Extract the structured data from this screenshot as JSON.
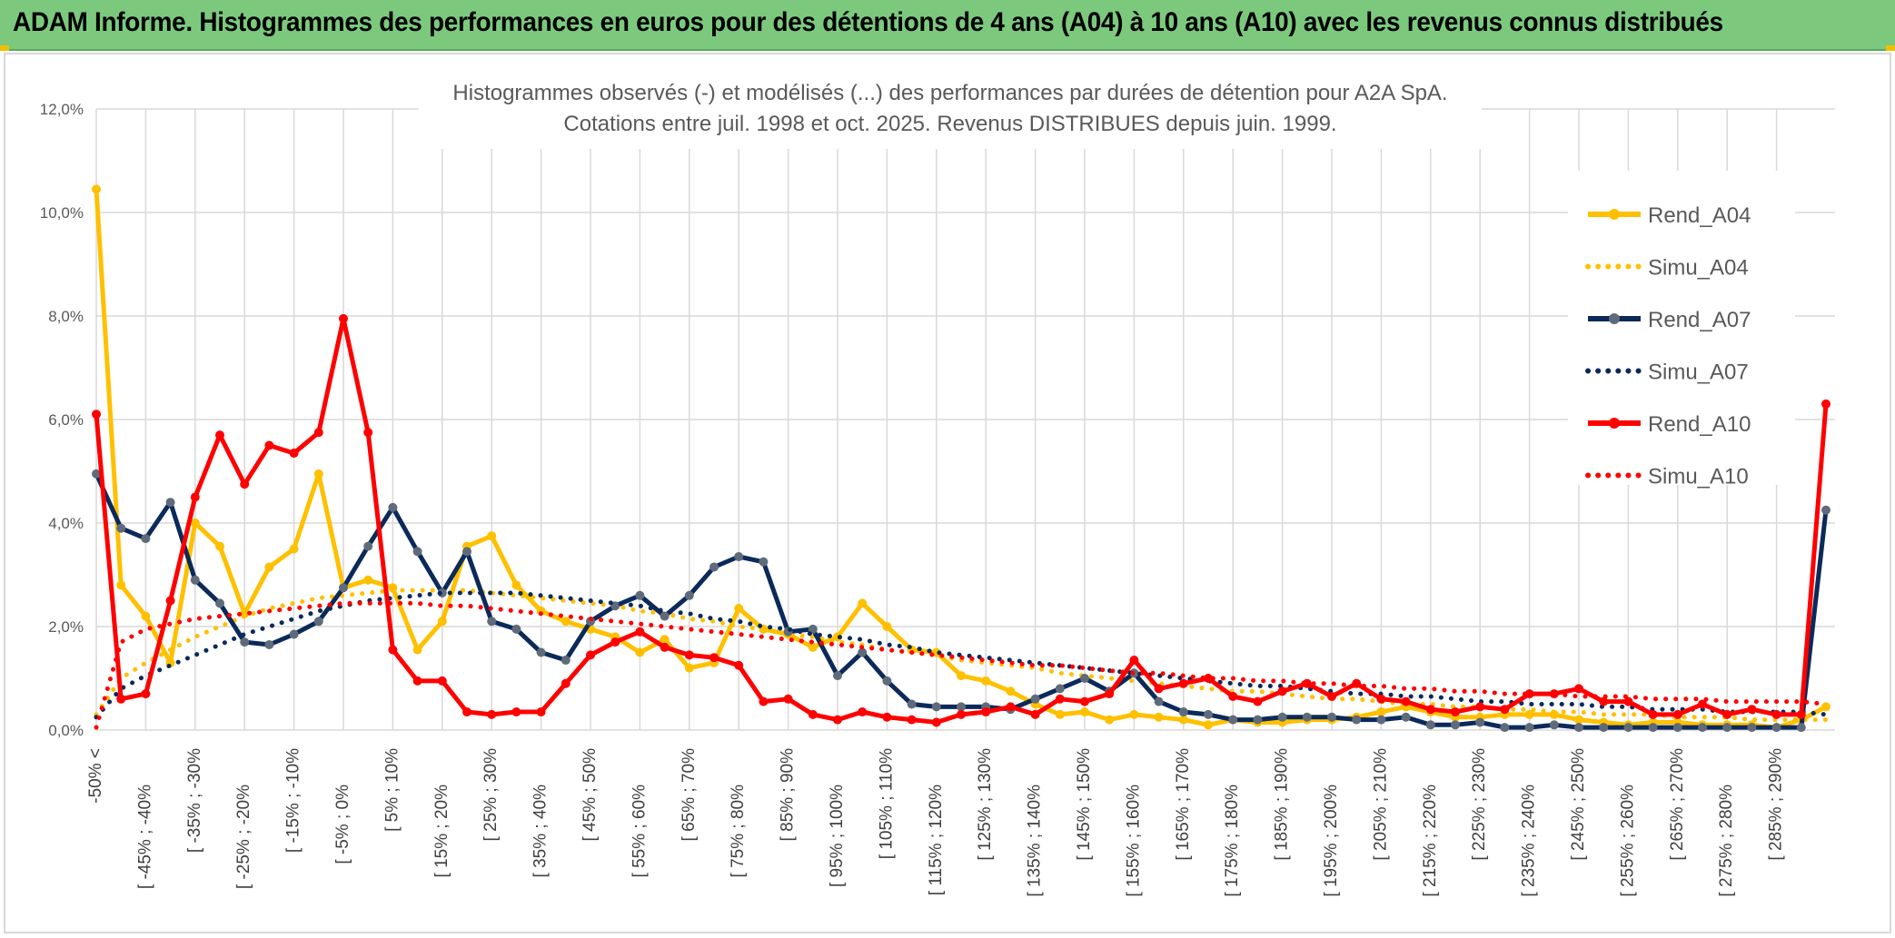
{
  "header": {
    "title": "ADAM Informe. Histogrammes des performances en euros pour des détentions de 4 ans (A04) à 10 ans (A10) avec les revenus connus distribués"
  },
  "colors": {
    "banner": "#7cc97e",
    "A04": "#ffc000",
    "A07": "#0b2a5a",
    "A10": "#ff0000",
    "grid": "#d9d9d9"
  },
  "chart_data": {
    "type": "line",
    "title": "Histogrammes observés (-) et modélisés (...) des performances par durées de détention pour A2A SpA.",
    "subtitle": "Cotations entre juil. 1998 et oct. 2025. Revenus DISTRIBUES depuis juin. 1999.",
    "xlabel": "",
    "ylabel": "",
    "ylim": [
      0,
      12
    ],
    "yticks": [
      "0,0%",
      "2,0%",
      "4,0%",
      "6,0%",
      "8,0%",
      "10,0%",
      "12,0%"
    ],
    "grid": true,
    "legend_position": "right",
    "x_tick_labels": [
      "-50% <",
      "[ -45% ; -40%",
      "[ -35% ; -30%",
      "[ -25% ; -20%",
      "[ -15% ; -10%",
      "[ -5% ; 0%",
      "[ 5% ; 10%",
      "[ 15% ; 20%",
      "[ 25% ; 30%",
      "[ 35% ; 40%",
      "[ 45% ; 50%",
      "[ 55% ; 60%",
      "[ 65% ; 70%",
      "[ 75% ; 80%",
      "[ 85% ; 90%",
      "[ 95% ; 100%",
      "[ 105% ; 110%",
      "[ 115% ; 120%",
      "[ 125% ; 130%",
      "[ 135% ; 140%",
      "[ 145% ; 150%",
      "[ 155% ; 160%",
      "[ 165% ; 170%",
      "[ 175% ; 180%",
      "[ 185% ; 190%",
      "[ 195% ; 200%",
      "[ 205% ; 210%",
      "[ 215% ; 220%",
      "[ 225% ; 230%",
      "[ 235% ; 240%",
      "[ 245% ; 250%",
      "[ 255% ; 260%",
      "[ 265% ; 270%",
      "[ 275% ; 280%",
      "[ 285% ; 290%"
    ],
    "n_categories": 71,
    "series": [
      {
        "name": "Rend_A04",
        "style": "solid",
        "color": "#ffc000",
        "values": [
          10.45,
          2.8,
          2.2,
          1.3,
          4.0,
          3.55,
          2.25,
          3.15,
          3.5,
          4.95,
          2.75,
          2.9,
          2.75,
          1.55,
          2.1,
          3.55,
          3.75,
          2.8,
          2.3,
          2.1,
          1.95,
          1.8,
          1.5,
          1.75,
          1.2,
          1.3,
          2.35,
          1.95,
          1.85,
          1.6,
          1.8,
          2.45,
          2.0,
          1.55,
          1.5,
          1.05,
          0.95,
          0.75,
          0.5,
          0.3,
          0.35,
          0.2,
          0.3,
          0.25,
          0.2,
          0.1,
          0.2,
          0.15,
          0.15,
          0.2,
          0.2,
          0.25,
          0.35,
          0.45,
          0.35,
          0.25,
          0.25,
          0.3,
          0.3,
          0.3,
          0.2,
          0.15,
          0.1,
          0.15,
          0.15,
          0.1,
          0.1,
          0.1,
          0.05,
          0.2,
          0.45
        ]
      },
      {
        "name": "Simu_A04",
        "style": "dotted",
        "color": "#ffc000",
        "values": [
          0.3,
          1.0,
          1.3,
          1.55,
          1.8,
          2.0,
          2.2,
          2.35,
          2.45,
          2.55,
          2.6,
          2.65,
          2.7,
          2.7,
          2.7,
          2.7,
          2.65,
          2.6,
          2.55,
          2.5,
          2.45,
          2.4,
          2.3,
          2.25,
          2.15,
          2.1,
          2.0,
          1.95,
          1.85,
          1.8,
          1.7,
          1.65,
          1.55,
          1.5,
          1.45,
          1.35,
          1.3,
          1.25,
          1.2,
          1.1,
          1.05,
          1.0,
          0.95,
          0.9,
          0.85,
          0.8,
          0.75,
          0.75,
          0.7,
          0.65,
          0.6,
          0.6,
          0.55,
          0.5,
          0.5,
          0.45,
          0.45,
          0.4,
          0.4,
          0.35,
          0.35,
          0.3,
          0.3,
          0.3,
          0.25,
          0.25,
          0.25,
          0.2,
          0.2,
          0.2,
          0.2
        ]
      },
      {
        "name": "Rend_A07",
        "style": "solid",
        "color": "#0b2a5a",
        "values": [
          4.95,
          3.9,
          3.7,
          4.4,
          2.9,
          2.45,
          1.7,
          1.65,
          1.85,
          2.1,
          2.75,
          3.55,
          4.3,
          3.45,
          2.65,
          3.45,
          2.1,
          1.95,
          1.5,
          1.35,
          2.1,
          2.4,
          2.6,
          2.2,
          2.6,
          3.15,
          3.35,
          3.25,
          1.9,
          1.95,
          1.05,
          1.5,
          0.95,
          0.5,
          0.45,
          0.45,
          0.45,
          0.4,
          0.6,
          0.8,
          1.0,
          0.75,
          1.1,
          0.55,
          0.35,
          0.3,
          0.2,
          0.2,
          0.25,
          0.25,
          0.25,
          0.2,
          0.2,
          0.25,
          0.1,
          0.1,
          0.15,
          0.05,
          0.05,
          0.1,
          0.05,
          0.05,
          0.05,
          0.05,
          0.05,
          0.05,
          0.05,
          0.05,
          0.05,
          0.05,
          4.25
        ]
      },
      {
        "name": "Simu_A07",
        "style": "dotted",
        "color": "#0b2a5a",
        "values": [
          0.25,
          0.8,
          1.05,
          1.25,
          1.45,
          1.65,
          1.85,
          2.0,
          2.15,
          2.3,
          2.4,
          2.5,
          2.55,
          2.6,
          2.65,
          2.65,
          2.65,
          2.65,
          2.6,
          2.55,
          2.5,
          2.45,
          2.4,
          2.3,
          2.25,
          2.15,
          2.1,
          2.0,
          1.95,
          1.85,
          1.8,
          1.75,
          1.65,
          1.6,
          1.5,
          1.45,
          1.4,
          1.35,
          1.3,
          1.25,
          1.2,
          1.15,
          1.1,
          1.05,
          1.0,
          0.95,
          0.9,
          0.85,
          0.85,
          0.8,
          0.75,
          0.7,
          0.7,
          0.65,
          0.65,
          0.6,
          0.55,
          0.55,
          0.5,
          0.5,
          0.5,
          0.45,
          0.45,
          0.4,
          0.4,
          0.4,
          0.35,
          0.35,
          0.35,
          0.35,
          0.3
        ]
      },
      {
        "name": "Rend_A10",
        "style": "solid",
        "color": "#ff0000",
        "values": [
          6.1,
          0.6,
          0.7,
          2.5,
          4.5,
          5.7,
          4.75,
          5.5,
          5.35,
          5.75,
          7.95,
          5.75,
          1.55,
          0.95,
          0.95,
          0.35,
          0.3,
          0.35,
          0.35,
          0.9,
          1.45,
          1.7,
          1.9,
          1.6,
          1.45,
          1.4,
          1.25,
          0.55,
          0.6,
          0.3,
          0.2,
          0.35,
          0.25,
          0.2,
          0.15,
          0.3,
          0.35,
          0.45,
          0.3,
          0.6,
          0.55,
          0.7,
          1.35,
          0.8,
          0.9,
          1.0,
          0.65,
          0.55,
          0.75,
          0.9,
          0.65,
          0.9,
          0.6,
          0.55,
          0.4,
          0.35,
          0.45,
          0.4,
          0.7,
          0.7,
          0.8,
          0.55,
          0.55,
          0.3,
          0.3,
          0.5,
          0.3,
          0.4,
          0.3,
          0.3,
          6.3
        ]
      },
      {
        "name": "Simu_A10",
        "style": "dotted",
        "color": "#ff0000",
        "values": [
          0.05,
          1.7,
          1.95,
          2.05,
          2.15,
          2.2,
          2.25,
          2.3,
          2.35,
          2.4,
          2.45,
          2.45,
          2.45,
          2.45,
          2.4,
          2.4,
          2.35,
          2.3,
          2.25,
          2.2,
          2.15,
          2.1,
          2.05,
          2.0,
          1.95,
          1.9,
          1.85,
          1.8,
          1.75,
          1.7,
          1.65,
          1.6,
          1.55,
          1.5,
          1.45,
          1.4,
          1.35,
          1.3,
          1.25,
          1.25,
          1.2,
          1.15,
          1.1,
          1.1,
          1.05,
          1.0,
          1.0,
          0.95,
          0.95,
          0.9,
          0.9,
          0.85,
          0.85,
          0.8,
          0.8,
          0.75,
          0.75,
          0.7,
          0.7,
          0.7,
          0.65,
          0.65,
          0.65,
          0.6,
          0.6,
          0.6,
          0.55,
          0.55,
          0.55,
          0.55,
          0.5
        ]
      }
    ]
  }
}
